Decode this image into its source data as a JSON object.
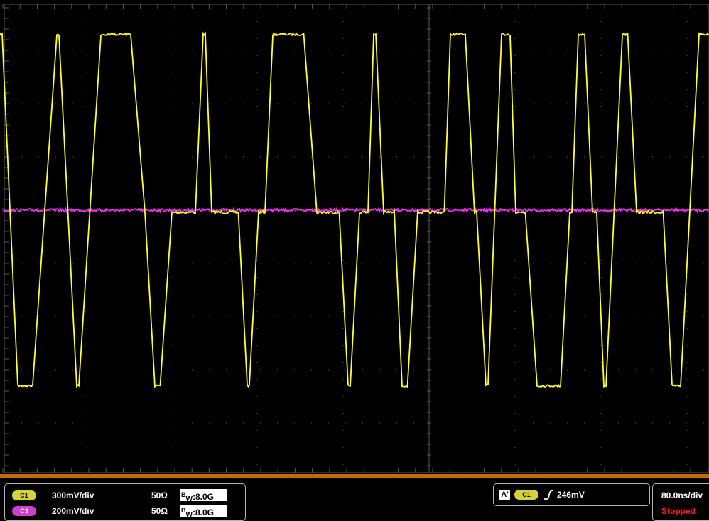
{
  "colors": {
    "ch1": "#ffff30",
    "ch3": "#ff2cff",
    "grid": "#5a5a5a",
    "timebar": "#c46a0e",
    "stopped": "#ff1a1a",
    "badge_ch1": "#d7d13a",
    "badge_ch3": "#cf3fcf"
  },
  "channels": [
    {
      "badge": "C1",
      "scale": "300mV/div",
      "impedance": "50Ω",
      "bw_label": "8.0G"
    },
    {
      "badge": "C3",
      "scale": "200mV/div",
      "impedance": "50Ω",
      "bw_label": "8.0G"
    }
  ],
  "trigger": {
    "mode_badge": "A'",
    "source_badge": "C1",
    "slope_icon": "rising-edge-icon",
    "level": "246mV"
  },
  "timebase": {
    "scale": "80.0ns/div",
    "state": "Stopped"
  },
  "waveform_ch1": {
    "levels_div": {
      "high": 3.3,
      "mid": 0,
      "low": -3.3
    },
    "segments": [
      [
        "H",
        0,
        4
      ],
      [
        "L",
        25,
        46
      ],
      [
        "H",
        80,
        84
      ],
      [
        "L",
        108,
        112
      ],
      [
        "H",
        142,
        184
      ],
      [
        "M",
        204,
        204
      ],
      [
        "L",
        218,
        226
      ],
      [
        "M",
        242,
        276
      ],
      [
        "H",
        286,
        290
      ],
      [
        "M",
        298,
        336
      ],
      [
        "L",
        348,
        352
      ],
      [
        "M",
        364,
        374
      ],
      [
        "H",
        384,
        428
      ],
      [
        "M",
        446,
        478
      ],
      [
        "L",
        490,
        494
      ],
      [
        "M",
        506,
        518
      ],
      [
        "H",
        526,
        530
      ],
      [
        "M",
        540,
        556
      ],
      [
        "L",
        566,
        574
      ],
      [
        "M",
        588,
        626
      ],
      [
        "H",
        634,
        656
      ],
      [
        "M",
        668,
        672
      ],
      [
        "L",
        684,
        688
      ],
      [
        "H",
        706,
        718
      ],
      [
        "M",
        726,
        740
      ],
      [
        "L",
        756,
        790
      ],
      [
        "M",
        802,
        806
      ],
      [
        "H",
        814,
        824
      ],
      [
        "M",
        834,
        840
      ],
      [
        "L",
        850,
        854
      ],
      [
        "H",
        876,
        884
      ],
      [
        "M",
        896,
        934
      ],
      [
        "L",
        946,
        958
      ],
      [
        "H",
        984,
        998
      ]
    ]
  },
  "waveform_ch3": {
    "level_div": 0,
    "noise_div": 0.06
  }
}
